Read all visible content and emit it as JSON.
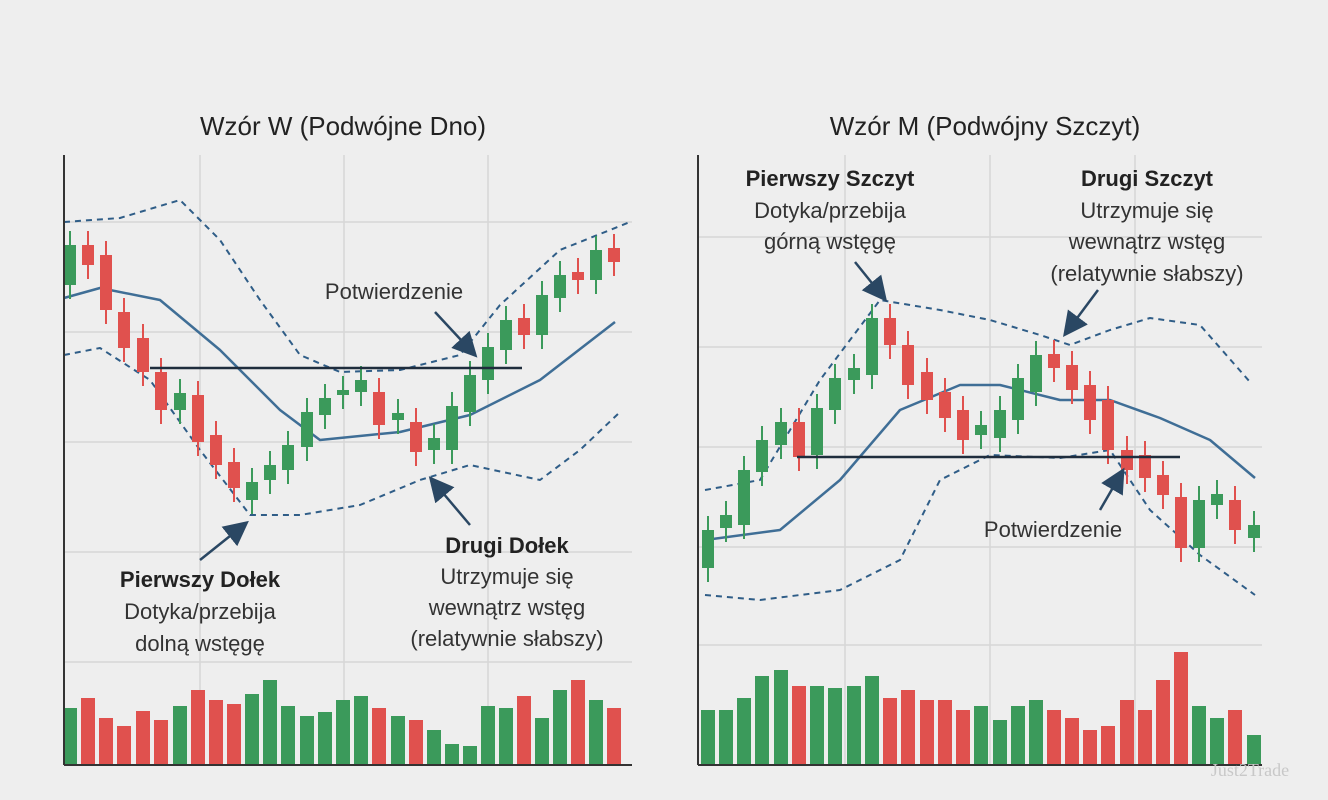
{
  "left": {
    "title": "Wzór W (Podwójne Dno)",
    "confirmation": "Potwierdzenie",
    "first": {
      "title": "Pierwszy Dołek",
      "lines": [
        "Dotyka/przebija",
        "dolną wstęgę"
      ]
    },
    "second": {
      "title": "Drugi Dołek",
      "lines": [
        "Utrzymuje się",
        "wewnątrz wstęg",
        "(relatywnie słabszy)"
      ]
    }
  },
  "right": {
    "title": "Wzór M (Podwójny Szczyt)",
    "confirmation": "Potwierdzenie",
    "first": {
      "title": "Pierwszy Szczyt",
      "lines": [
        "Dotyka/przebija",
        "górną wstęgę"
      ]
    },
    "second": {
      "title": "Drugi Szczyt",
      "lines": [
        "Utrzymuje się",
        "wewnątrz wstęg",
        "(relatywnie słabszy)"
      ]
    }
  },
  "watermark": "Just2Trade"
}
